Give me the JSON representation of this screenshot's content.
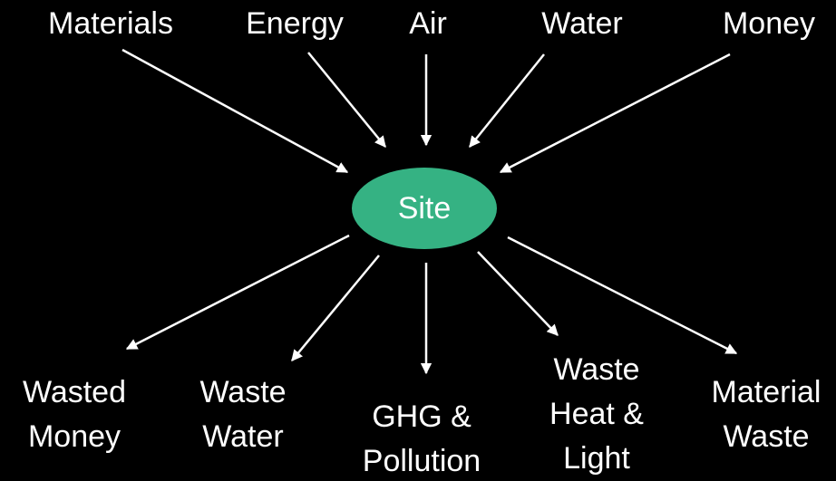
{
  "center": {
    "label": "Site"
  },
  "inputs": [
    {
      "label": "Materials"
    },
    {
      "label": "Energy"
    },
    {
      "label": "Air"
    },
    {
      "label": "Water"
    },
    {
      "label": "Money"
    }
  ],
  "outputs": [
    {
      "lines": [
        "Wasted",
        "Money"
      ]
    },
    {
      "lines": [
        "Waste",
        "Water"
      ]
    },
    {
      "lines": [
        "GHG &",
        "Pollution"
      ]
    },
    {
      "lines": [
        "Waste",
        "Heat &",
        "Light"
      ]
    },
    {
      "lines": [
        "Material",
        "Waste"
      ]
    }
  ]
}
